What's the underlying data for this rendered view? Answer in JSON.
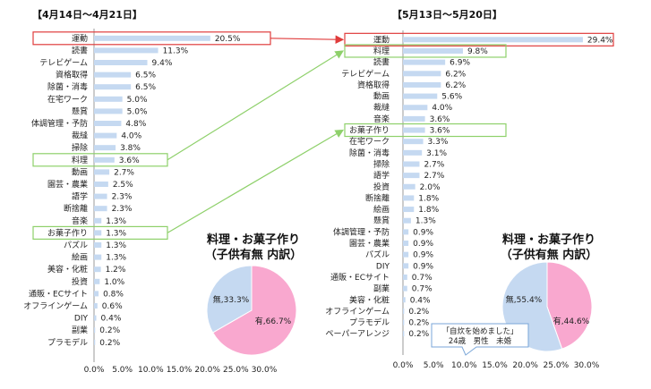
{
  "chart_data": [
    {
      "type": "bar",
      "title": "【4月14日～4月21日】",
      "categories": [
        "運動",
        "読書",
        "テレビゲーム",
        "資格取得",
        "除菌・消毒",
        "在宅ワーク",
        "懸賞",
        "体調管理・予防",
        "裁縫",
        "掃除",
        "料理",
        "動画",
        "園芸・農業",
        "語学",
        "断捨離",
        "音楽",
        "お菓子作り",
        "パズル",
        "絵画",
        "美容・化粧",
        "投資",
        "通販・ECサイト",
        "オフラインゲーム",
        "DIY",
        "副業",
        "プラモデル"
      ],
      "values": [
        20.5,
        11.3,
        9.4,
        6.5,
        6.5,
        5.0,
        5.0,
        4.8,
        4.0,
        3.8,
        3.6,
        2.7,
        2.5,
        2.3,
        2.3,
        1.3,
        1.3,
        1.3,
        1.3,
        1.2,
        1.0,
        0.8,
        0.6,
        0.4,
        0.2,
        0.2
      ],
      "value_labels": [
        "20.5%",
        "11.3%",
        "9.4%",
        "6.5%",
        "6.5%",
        "5.0%",
        "5.0%",
        "4.8%",
        "4.0%",
        "3.8%",
        "3.6%",
        "2.7%",
        "2.5%",
        "2.3%",
        "2.3%",
        "1.3%",
        "1.3%",
        "1.3%",
        "1.3%",
        "1.2%",
        "1.0%",
        "0.8%",
        "0.6%",
        "0.4%",
        "0.2%",
        "0.2%"
      ],
      "highlight": [
        "運動",
        "料理",
        "お菓子作り"
      ],
      "xlim": [
        0,
        30
      ],
      "xticks": [
        "0.0%",
        "5.0%",
        "10.0%",
        "15.0%",
        "20.0%",
        "25.0%",
        "30.0%"
      ],
      "bar_color": "#c5d9f1",
      "highlight_top_color": "#e03c3c",
      "highlight_green_color": "#8ed06a"
    },
    {
      "type": "bar",
      "title": "【5月13日～5月20日】",
      "categories": [
        "運動",
        "料理",
        "読書",
        "テレビゲーム",
        "資格取得",
        "動画",
        "裁縫",
        "音楽",
        "お菓子作り",
        "在宅ワーク",
        "除菌・消毒",
        "掃除",
        "語学",
        "投資",
        "断捨離",
        "絵画",
        "懸賞",
        "体調管理・予防",
        "園芸・農業",
        "パズル",
        "DIY",
        "通販・ECサイト",
        "副業",
        "美容・化粧",
        "オフラインゲーム",
        "プラモデル",
        "ペーパーアレンジ"
      ],
      "values": [
        29.4,
        9.8,
        6.9,
        6.2,
        6.2,
        5.6,
        4.0,
        3.6,
        3.6,
        3.3,
        3.1,
        2.7,
        2.7,
        2.0,
        1.8,
        1.8,
        1.3,
        0.9,
        0.9,
        0.9,
        0.9,
        0.7,
        0.7,
        0.4,
        0.2,
        0.2,
        0.2
      ],
      "value_labels": [
        "29.4%",
        "9.8%",
        "6.9%",
        "6.2%",
        "6.2%",
        "5.6%",
        "4.0%",
        "3.6%",
        "3.6%",
        "3.3%",
        "3.1%",
        "2.7%",
        "2.7%",
        "2.0%",
        "1.8%",
        "1.8%",
        "1.3%",
        "0.9%",
        "0.9%",
        "0.9%",
        "0.9%",
        "0.7%",
        "0.7%",
        "0.4%",
        "0.2%",
        "0.2%",
        "0.2%"
      ],
      "highlight": [
        "運動",
        "料理",
        "お菓子作り"
      ],
      "xlim": [
        0,
        30
      ],
      "xticks": [
        "0.0%",
        "5.0%",
        "10.0%",
        "15.0%",
        "20.0%",
        "25.0%",
        "30.0%"
      ],
      "bar_color": "#c5d9f1"
    },
    {
      "type": "pie",
      "title_line1": "料理・お菓子作り",
      "title_line2": "（子供有無 内訳）",
      "slices": [
        {
          "label": "有,66.7%",
          "value": 66.7,
          "color": "#f9a8cf"
        },
        {
          "label": "無,33.3%",
          "value": 33.3,
          "color": "#c5d9f1"
        }
      ]
    },
    {
      "type": "pie",
      "title_line1": "料理・お菓子作り",
      "title_line2": "（子供有無 内訳）",
      "slices": [
        {
          "label": "有,44.6%",
          "value": 44.6,
          "color": "#f9a8cf"
        },
        {
          "label": "無,55.4%",
          "value": 55.4,
          "color": "#c5d9f1"
        }
      ],
      "callout_line1": "「自炊を始めました」",
      "callout_line2": "24歳　男性　未婚"
    }
  ]
}
